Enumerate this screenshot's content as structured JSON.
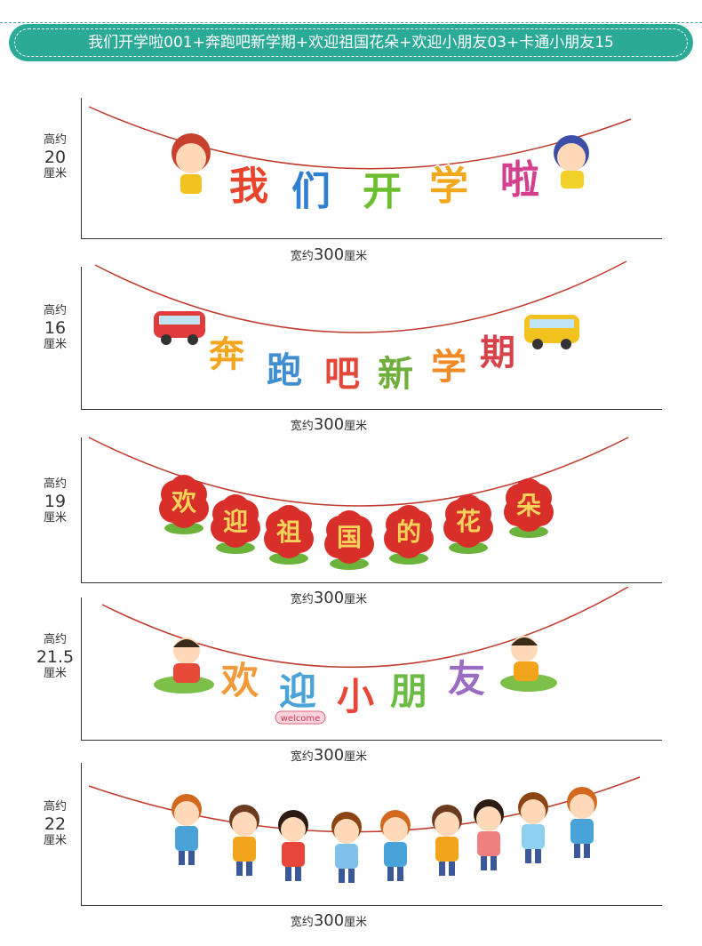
{
  "header": {
    "title": "我们开学啦001+奔跑吧新学期+欢迎祖国花朵+欢迎小朋友03+卡通小朋友15"
  },
  "banners": [
    {
      "height_prefix": "高约",
      "height": "20",
      "height_unit": "厘米",
      "width_prefix": "宽约",
      "width": "300",
      "width_unit": "厘米",
      "chars": [
        "我",
        "们",
        "开",
        "学",
        "啦"
      ],
      "colors": [
        "#e8452c",
        "#2f7fd1",
        "#6bbf2e",
        "#f2a81d",
        "#d43f8d"
      ]
    },
    {
      "height_prefix": "高约",
      "height": "16",
      "height_unit": "厘米",
      "width_prefix": "宽约",
      "width": "300",
      "width_unit": "厘米",
      "chars": [
        "奔",
        "跑",
        "吧",
        "新",
        "学",
        "期"
      ],
      "colors": [
        "#f4a51c",
        "#3e8ed0",
        "#e2483a",
        "#6fae3b",
        "#f08a24",
        "#d8434b"
      ]
    },
    {
      "height_prefix": "高约",
      "height": "19",
      "height_unit": "厘米",
      "width_prefix": "宽约",
      "width": "300",
      "width_unit": "厘米",
      "chars": [
        "欢",
        "迎",
        "祖",
        "国",
        "的",
        "花",
        "朵"
      ],
      "flower_color": "#d92f2a",
      "leaf_color": "#6bb33a",
      "char_color": "#f7d25a"
    },
    {
      "height_prefix": "高约",
      "height": "21.5",
      "height_unit": "厘米",
      "width_prefix": "宽约",
      "width": "300",
      "width_unit": "厘米",
      "chars": [
        "欢",
        "迎",
        "小",
        "朋",
        "友"
      ],
      "colors": [
        "#f29a3a",
        "#4aa3d8",
        "#e8463a",
        "#6bbb44",
        "#9a6cc4"
      ],
      "badge": "welcome"
    },
    {
      "height_prefix": "高约",
      "height": "22",
      "height_unit": "厘米",
      "width_prefix": "宽约",
      "width": "300",
      "width_unit": "厘米",
      "kids": 9
    }
  ],
  "colors": {
    "header_bg": "#2bab97",
    "string": "#c0392b"
  }
}
